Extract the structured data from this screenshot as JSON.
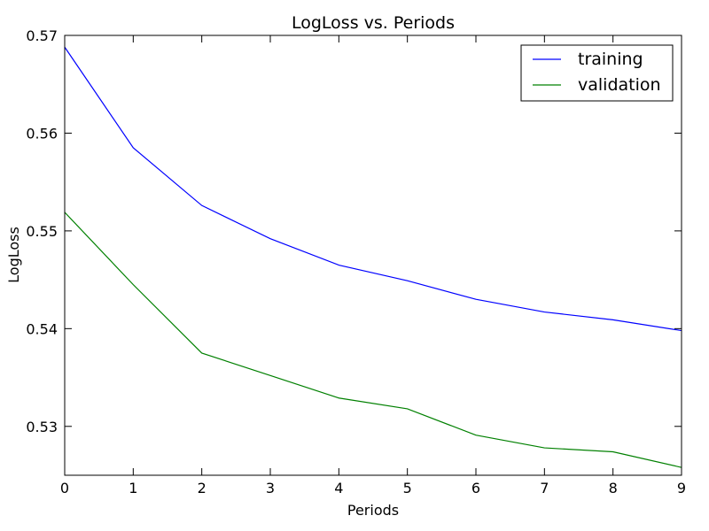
{
  "chart_data": {
    "type": "line",
    "title": "LogLoss vs. Periods",
    "xlabel": "Periods",
    "ylabel": "LogLoss",
    "xlim": [
      0,
      9
    ],
    "ylim": [
      0.525,
      0.57
    ],
    "x": [
      0,
      1,
      2,
      3,
      4,
      5,
      6,
      7,
      8,
      9
    ],
    "xticks": [
      0,
      1,
      2,
      3,
      4,
      5,
      6,
      7,
      8,
      9
    ],
    "xtick_labels": [
      "0",
      "1",
      "2",
      "3",
      "4",
      "5",
      "6",
      "7",
      "8",
      "9"
    ],
    "yticks": [
      0.53,
      0.54,
      0.55,
      0.56,
      0.57
    ],
    "ytick_labels": [
      "0.53",
      "0.54",
      "0.55",
      "0.56",
      "0.57"
    ],
    "grid": false,
    "legend_position": "top-right",
    "series": [
      {
        "name": "training",
        "color": "#0000ff",
        "values": [
          0.5688,
          0.5585,
          0.5526,
          0.5492,
          0.5465,
          0.5449,
          0.543,
          0.5417,
          0.5409,
          0.5398
        ]
      },
      {
        "name": "validation",
        "color": "#008000",
        "values": [
          0.5519,
          0.5445,
          0.5375,
          0.5352,
          0.5329,
          0.5318,
          0.5291,
          0.5278,
          0.5274,
          0.5258
        ]
      }
    ]
  }
}
